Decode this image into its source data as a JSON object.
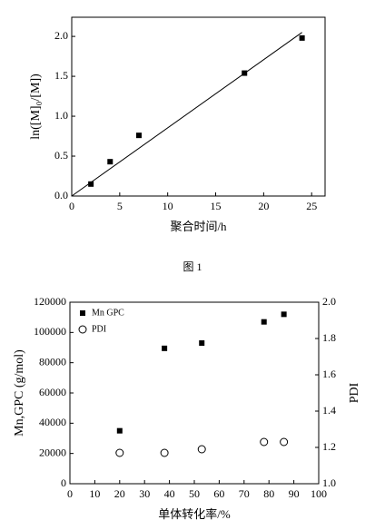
{
  "caption": "图 1",
  "chart_data": [
    {
      "type": "scatter",
      "xlabel": "聚合时间/h",
      "ylabel": "ln([M]₀/[M])",
      "xlim": [
        0,
        26.4
      ],
      "xticks": [
        0,
        5,
        10,
        15,
        20,
        25
      ],
      "ylim": [
        0,
        2.24
      ],
      "yticks": [
        {
          "value": 0,
          "label": "0.0"
        },
        0.5,
        {
          "value": 1,
          "label": "1.0"
        },
        1.5,
        {
          "value": 2,
          "label": "2.0"
        }
      ],
      "series": [
        {
          "marker": "square",
          "color": "#000000",
          "x": [
            2,
            4,
            7,
            18,
            24
          ],
          "values": [
            0.15,
            0.43,
            0.76,
            1.54,
            1.98
          ]
        },
        {
          "marker": "line",
          "color": "#000000",
          "x": [
            0,
            24
          ],
          "values": [
            0,
            2.05
          ]
        }
      ]
    },
    {
      "type": "scatter",
      "xlabel": "单体转化率/%",
      "ylabel": "Mn,GPC (g/mol)",
      "y2label": "PDI",
      "legend": "top-left",
      "xlim": [
        0,
        100
      ],
      "xticks": [
        0,
        10,
        20,
        30,
        40,
        50,
        60,
        70,
        80,
        90,
        100
      ],
      "ylim": [
        0,
        120000
      ],
      "yticks": [
        0,
        20000,
        40000,
        60000,
        80000,
        100000,
        120000
      ],
      "y2lim": [
        1,
        2
      ],
      "y2ticks": [
        {
          "value": 1,
          "label": "1.0"
        },
        1.2,
        1.4,
        1.6,
        1.8,
        {
          "value": 2,
          "label": "2.0"
        }
      ],
      "series": [
        {
          "name": "Mn GPC",
          "marker": "square",
          "color": "#000000",
          "x": [
            20,
            38,
            53,
            78,
            86
          ],
          "values": [
            35000,
            89500,
            93000,
            107000,
            112000
          ]
        },
        {
          "name": "PDI",
          "marker": "circle",
          "color": "#000000",
          "axis": "y2",
          "x": [
            20,
            38,
            53,
            78,
            86
          ],
          "values": [
            1.17,
            1.17,
            1.19,
            1.23,
            1.23
          ]
        }
      ]
    }
  ]
}
